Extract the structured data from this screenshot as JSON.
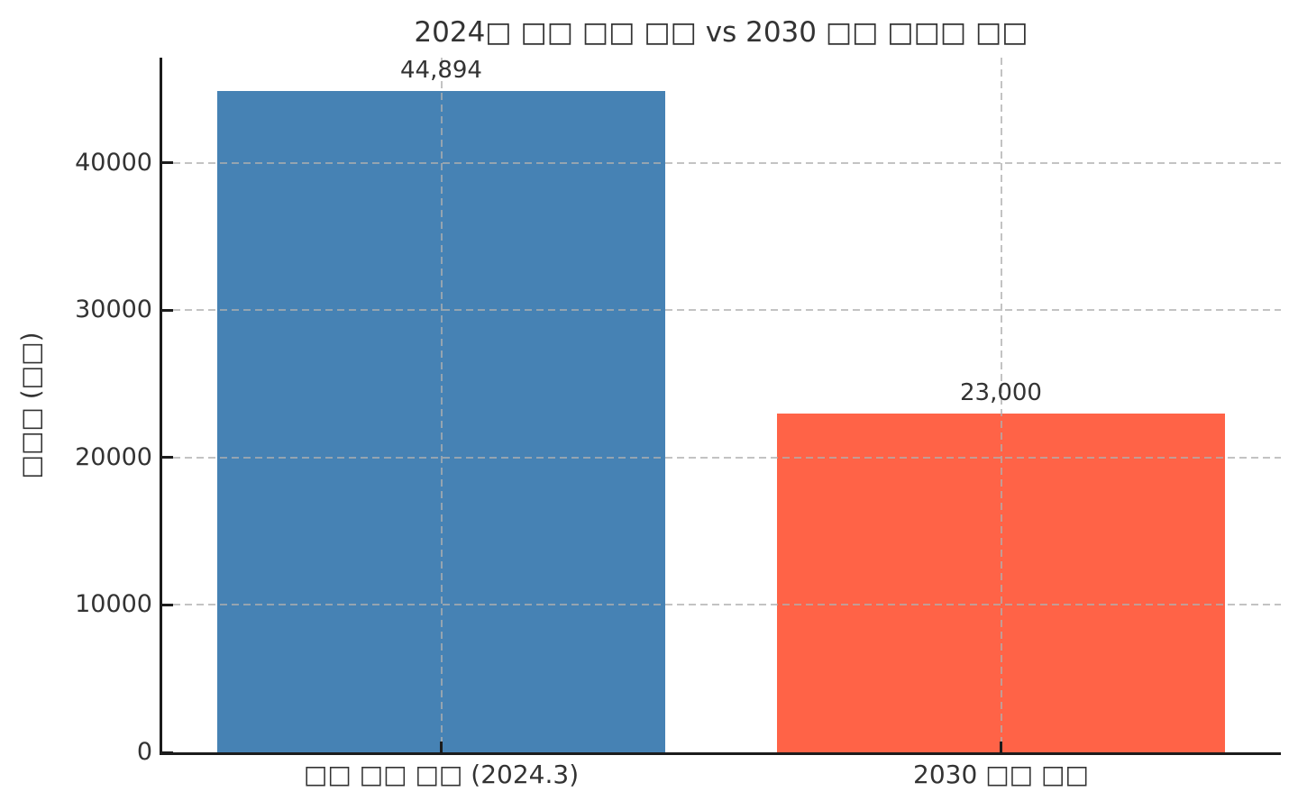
{
  "figure": {
    "background": "#ffffff"
  },
  "chart_data": {
    "type": "bar",
    "title": "2024□ □□ □□ □□ vs 2030 □□ □□□ □□",
    "ylabel": "□□□ (□□)",
    "xlabel": "",
    "categories": [
      "□□ □□ □□ (2024.3)",
      "2030 □□ □□"
    ],
    "values": [
      44894,
      23000
    ],
    "value_labels": [
      "44,894",
      "23,000"
    ],
    "bar_colors": [
      "#4682B4",
      "#FF6347"
    ],
    "yticks": [
      0,
      10000,
      20000,
      30000,
      40000
    ],
    "ytick_labels": [
      "0",
      "10000",
      "20000",
      "30000",
      "40000"
    ],
    "ylim": [
      0,
      47139
    ],
    "bar_width_fraction": 0.8,
    "grid": {
      "horizontal": true,
      "vertical": true,
      "style": "dashed",
      "above_bars": true
    },
    "legend_position": "none"
  },
  "style": {
    "text_color": "#333333",
    "spine_color": "#1c1c1c",
    "grid_color_rgba": "rgba(175,175,175,0.75)"
  }
}
